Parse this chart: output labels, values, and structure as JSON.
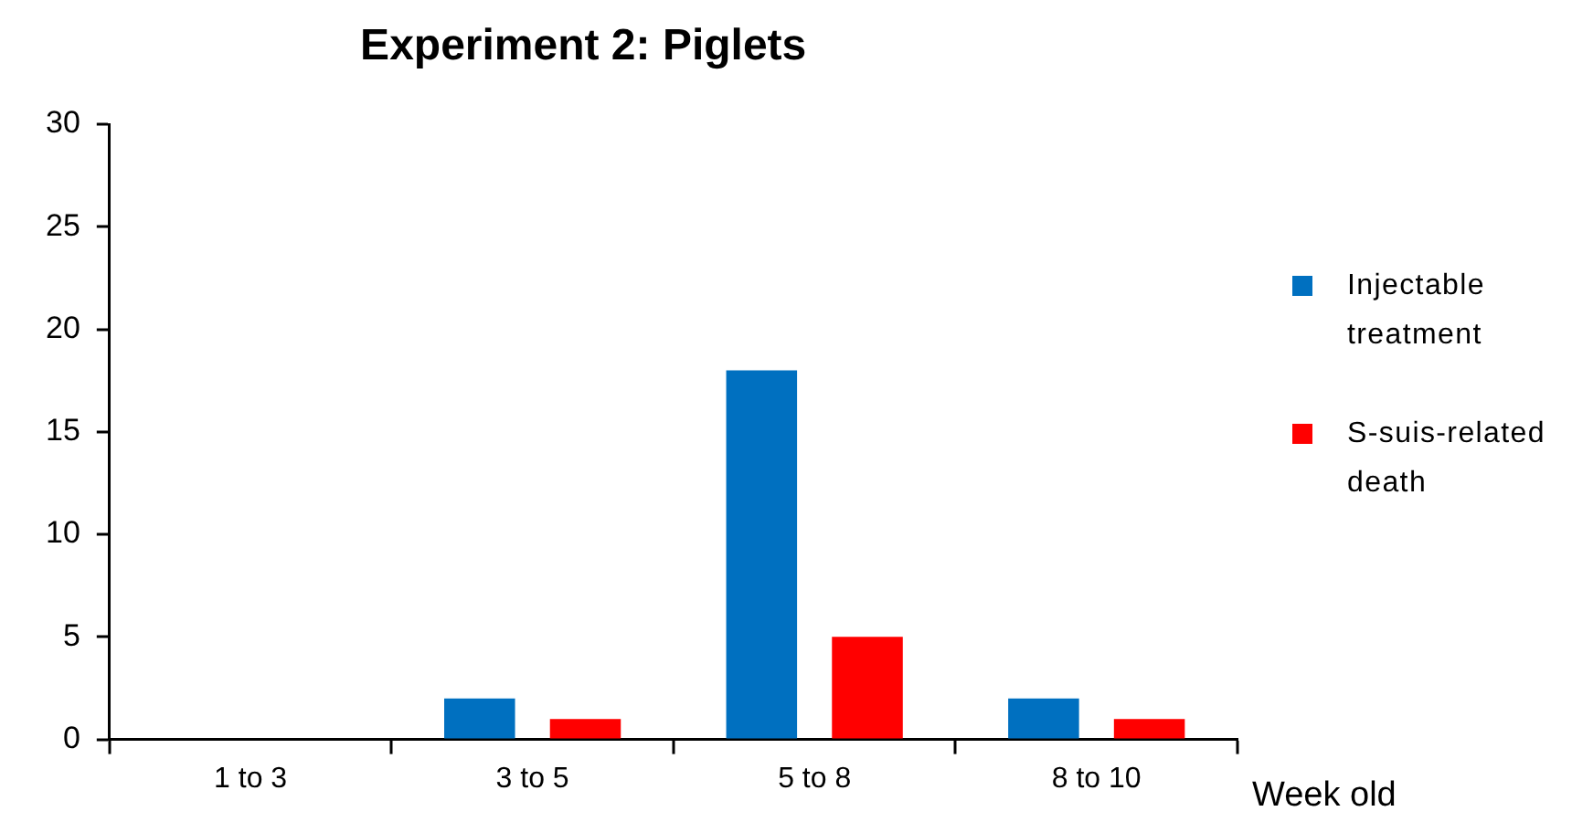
{
  "chart_data": {
    "type": "bar",
    "title": "Experiment 2: Piglets",
    "xlabel": "Week old",
    "categories": [
      "1 to 3",
      "3 to 5",
      "5 to 8",
      "8 to 10"
    ],
    "series": [
      {
        "name": "Injectable treatment",
        "color": "#0070c0",
        "values": [
          0,
          2,
          18,
          2
        ]
      },
      {
        "name": "S-suis-related death",
        "color": "#ff0000",
        "values": [
          0,
          1,
          5,
          1
        ]
      }
    ],
    "ylim": [
      0,
      30
    ],
    "yticks": [
      0,
      5,
      10,
      15,
      20,
      25,
      30
    ],
    "grid": false,
    "legend": "right"
  }
}
